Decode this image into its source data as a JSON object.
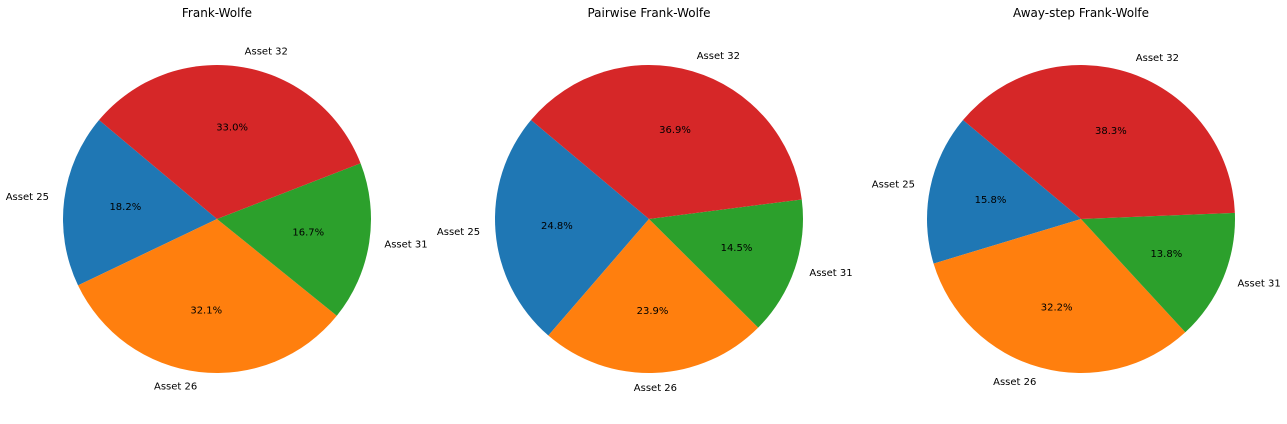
{
  "colors": {
    "Asset 25": "#1f77b4",
    "Asset 26": "#ff7f0e",
    "Asset 31": "#2ca02c",
    "Asset 32": "#d62728"
  },
  "chart_data": [
    {
      "type": "pie",
      "title": "Frank-Wolfe",
      "labels": [
        "Asset 25",
        "Asset 26",
        "Asset 31",
        "Asset 32"
      ],
      "values": [
        18.2,
        32.1,
        16.7,
        33.0
      ],
      "value_labels": [
        "18.2%",
        "32.1%",
        "16.7%",
        "33.0%"
      ],
      "start_angle_deg": 140,
      "direction": "counterclockwise"
    },
    {
      "type": "pie",
      "title": "Pairwise Frank-Wolfe",
      "labels": [
        "Asset 25",
        "Asset 26",
        "Asset 31",
        "Asset 32"
      ],
      "values": [
        24.8,
        23.9,
        14.5,
        36.9
      ],
      "value_labels": [
        "24.8%",
        "23.9%",
        "14.5%",
        "36.9%"
      ],
      "start_angle_deg": 140,
      "direction": "counterclockwise"
    },
    {
      "type": "pie",
      "title": "Away-step Frank-Wolfe",
      "labels": [
        "Asset 25",
        "Asset 26",
        "Asset 31",
        "Asset 32"
      ],
      "values": [
        15.8,
        32.2,
        13.8,
        38.3
      ],
      "value_labels": [
        "15.8%",
        "32.2%",
        "13.8%",
        "38.3%"
      ],
      "start_angle_deg": 140,
      "direction": "counterclockwise"
    }
  ]
}
